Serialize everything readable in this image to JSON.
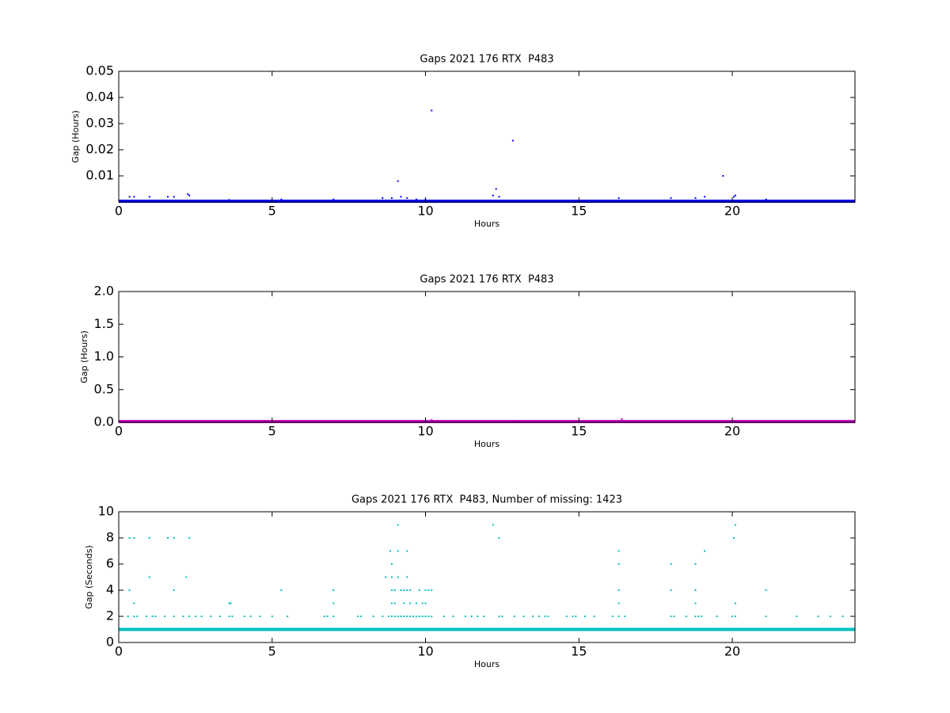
{
  "chart_data": [
    {
      "type": "scatter",
      "title": "Gaps 2021 176 RTX  P483",
      "xlabel": "Hours",
      "ylabel": "Gap (Hours)",
      "xlim": [
        0,
        24
      ],
      "ylim": [
        0,
        0.05
      ],
      "xticks": [
        0,
        5,
        10,
        15,
        20
      ],
      "yticks": [
        0.01,
        0.02,
        0.03,
        0.04,
        0.05
      ],
      "series": [
        {
          "type": "line",
          "color": "#0000ff",
          "x": [
            0,
            24
          ],
          "values": [
            0.0003,
            0.0003
          ]
        },
        {
          "color": "#0000ff",
          "x": [
            0.35,
            0.5,
            1.0,
            1.6,
            1.8,
            2.25,
            2.3,
            3.6,
            5.3,
            7.0,
            8.6,
            8.9,
            9.1,
            9.2,
            9.4,
            9.7,
            10.0,
            10.2,
            12.2,
            12.3,
            12.4,
            12.85,
            16.3,
            18.0,
            18.8,
            19.1,
            19.7,
            20.05,
            20.1,
            21.1
          ],
          "values": [
            0.002,
            0.002,
            0.002,
            0.002,
            0.002,
            0.003,
            0.0025,
            0.0008,
            0.001,
            0.001,
            0.0015,
            0.0015,
            0.008,
            0.002,
            0.0015,
            0.001,
            0.001,
            0.035,
            0.0025,
            0.005,
            0.002,
            0.0235,
            0.0015,
            0.0015,
            0.0015,
            0.002,
            0.01,
            0.002,
            0.0025,
            0.001
          ]
        }
      ]
    },
    {
      "type": "scatter",
      "title": "Gaps 2021 176 RTX  P483",
      "xlabel": "Hours",
      "ylabel": "Gap (Hours)",
      "xlim": [
        0,
        24
      ],
      "ylim": [
        0,
        2
      ],
      "xticks": [
        0,
        5,
        10,
        15,
        20
      ],
      "yticks": [
        {
          "value": 0,
          "label": "0.0"
        },
        0.5,
        {
          "value": 1,
          "label": "1.0"
        },
        1.5,
        {
          "value": 2,
          "label": "2.0"
        }
      ],
      "series": [
        {
          "type": "line",
          "color": "#bf00bf",
          "x": [
            0,
            24
          ],
          "values": [
            0.01,
            0.01
          ]
        },
        {
          "color": "#bf00bf",
          "x": [
            10.2,
            12.85,
            16.4
          ],
          "values": [
            0.035,
            0.023,
            0.05
          ]
        }
      ]
    },
    {
      "type": "scatter",
      "title": "Gaps 2021 176 RTX  P483, Number of missing: 1423",
      "xlabel": "Hours",
      "ylabel": "Gap (Seconds)",
      "xlim": [
        0,
        24
      ],
      "ylim": [
        0,
        10
      ],
      "xticks": [
        0,
        5,
        10,
        15,
        20
      ],
      "yticks": [
        0,
        2,
        4,
        6,
        8,
        10
      ],
      "series": [
        {
          "type": "line",
          "color": "#00bfbf",
          "x": [
            0,
            24
          ],
          "values": [
            1,
            1
          ]
        },
        {
          "color": "#00bfbf",
          "x": [
            0.35,
            0.5,
            1.0,
            1.6,
            1.8,
            2.3,
            0.35,
            0.5,
            1.0,
            2.2,
            1.8,
            5.3,
            7.0,
            3.6,
            3.65,
            7.0,
            0.3,
            0.5,
            0.6,
            0.9,
            1.1,
            1.2,
            1.5,
            1.8,
            2.1,
            2.3,
            2.5,
            2.7,
            3.0,
            3.3,
            3.6,
            3.7,
            4.1,
            4.3,
            4.6,
            5.0,
            5.5,
            6.7,
            6.8,
            7.0,
            7.8,
            7.9,
            8.3,
            8.6,
            9.1,
            12.2,
            20.1,
            12.4,
            20.05,
            8.85,
            9.1,
            9.4,
            16.3,
            19.1,
            8.9,
            16.3,
            18.0,
            18.8,
            8.7,
            8.9,
            9.1,
            9.4,
            8.9,
            9.0,
            9.2,
            9.3,
            9.4,
            9.5,
            9.8,
            10.0,
            10.1,
            10.2,
            16.3,
            18.0,
            18.8,
            21.1,
            8.9,
            9.0,
            9.3,
            9.5,
            9.7,
            9.9,
            10.0,
            16.3,
            18.8,
            20.1,
            8.8,
            8.9,
            9.0,
            9.1,
            9.2,
            9.3,
            9.4,
            9.5,
            9.6,
            9.7,
            9.8,
            9.9,
            10.0,
            10.1,
            10.2,
            10.6,
            10.9,
            11.3,
            11.5,
            11.7,
            11.9,
            12.4,
            12.5,
            12.9,
            13.2,
            13.5,
            13.7,
            13.9,
            14.0,
            14.6,
            14.8,
            14.9,
            15.2,
            15.5,
            16.1,
            16.3,
            16.5,
            18.0,
            18.1,
            18.5,
            18.8,
            18.9,
            19.0,
            19.5,
            20.0,
            20.1,
            21.1,
            22.1,
            22.8,
            23.2,
            23.6
          ],
          "values": [
            8,
            8,
            8,
            8,
            8,
            8,
            4,
            3,
            5,
            5,
            4,
            4,
            4,
            3,
            3,
            3,
            2,
            2,
            2,
            2,
            2,
            2,
            2,
            2,
            2,
            2,
            2,
            2,
            2,
            2,
            2,
            2,
            2,
            2,
            2,
            2,
            2,
            2,
            2,
            2,
            2,
            2,
            2,
            2,
            9,
            9,
            9,
            8,
            8,
            7,
            7,
            7,
            7,
            7,
            6,
            6,
            6,
            6,
            5,
            5,
            5,
            5,
            4,
            4,
            4,
            4,
            4,
            4,
            4,
            4,
            4,
            4,
            4,
            4,
            4,
            4,
            3,
            3,
            3,
            3,
            3,
            3,
            3,
            3,
            3,
            3,
            2,
            2,
            2,
            2,
            2,
            2,
            2,
            2,
            2,
            2,
            2,
            2,
            2,
            2,
            2,
            2,
            2,
            2,
            2,
            2,
            2,
            2,
            2,
            2,
            2,
            2,
            2,
            2,
            2,
            2,
            2,
            2,
            2,
            2,
            2,
            2,
            2,
            2,
            2,
            2,
            2,
            2,
            2,
            2,
            2,
            2,
            2,
            2,
            2,
            2,
            2
          ]
        }
      ]
    }
  ]
}
